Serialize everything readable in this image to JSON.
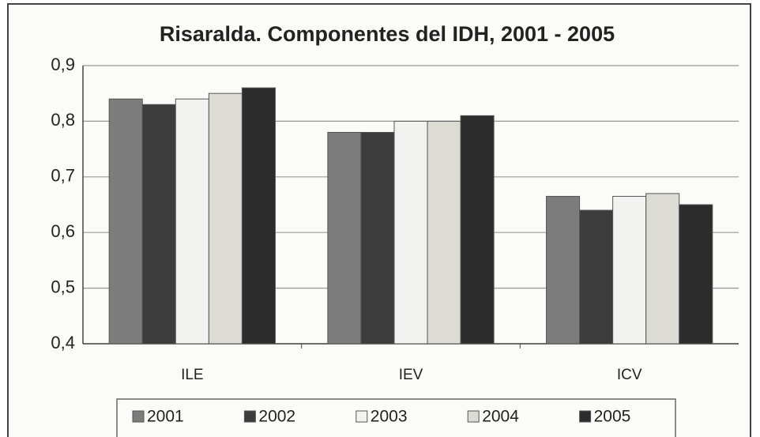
{
  "chart_data": {
    "type": "bar",
    "title": "Risaralda. Componentes del IDH, 2001 - 2005",
    "categories": [
      "ILE",
      "IEV",
      "ICV"
    ],
    "series": [
      {
        "name": "2001",
        "color": "#7c7c7c",
        "values": [
          0.84,
          0.78,
          0.665
        ]
      },
      {
        "name": "2002",
        "color": "#3c3c3c",
        "values": [
          0.83,
          0.78,
          0.64
        ]
      },
      {
        "name": "2003",
        "color": "#f2f2f0",
        "values": [
          0.84,
          0.8,
          0.665
        ]
      },
      {
        "name": "2004",
        "color": "#dddcd4",
        "values": [
          0.85,
          0.8,
          0.67
        ]
      },
      {
        "name": "2005",
        "color": "#2c2c2c",
        "values": [
          0.86,
          0.81,
          0.65
        ]
      }
    ],
    "ylim": [
      0.4,
      0.9
    ],
    "yticks": [
      {
        "value": 0.4,
        "label": "0,4"
      },
      {
        "value": 0.5,
        "label": "0,5"
      },
      {
        "value": 0.6,
        "label": "0,6"
      },
      {
        "value": 0.7,
        "label": "0,7"
      },
      {
        "value": 0.8,
        "label": "0,8"
      },
      {
        "value": 0.9,
        "label": "0,9"
      }
    ],
    "grid": true,
    "legend": "bottom"
  }
}
